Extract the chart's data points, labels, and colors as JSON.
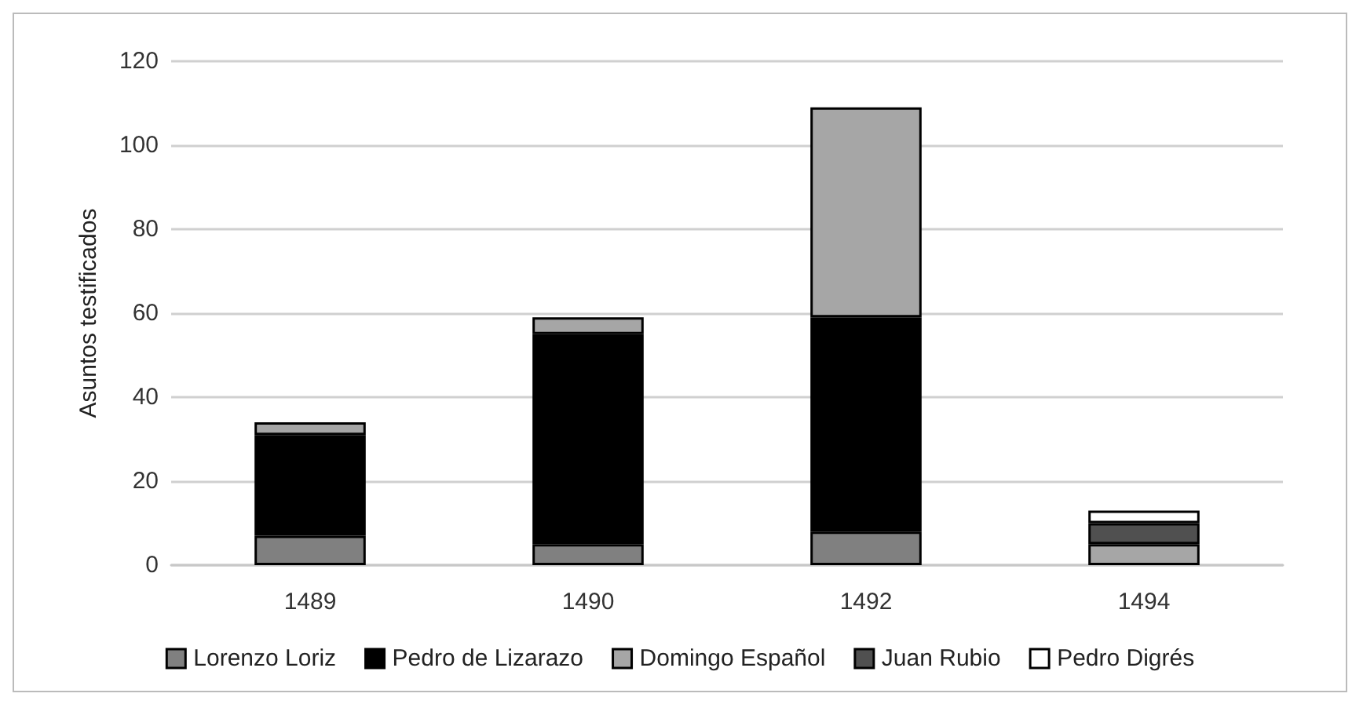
{
  "chart_data": {
    "type": "bar",
    "stacked": true,
    "ylabel": "Asuntos testificados",
    "categories": [
      "1489",
      "1490",
      "1492",
      "1494"
    ],
    "series": [
      {
        "name": "Lorenzo Loriz",
        "color": "#808080",
        "values": [
          7,
          5,
          8,
          null
        ]
      },
      {
        "name": "Pedro de Lizarazo",
        "color": "#000000",
        "values": [
          24,
          50,
          51,
          null
        ]
      },
      {
        "name": "Domingo Español",
        "color": "#a6a6a6",
        "values": [
          3,
          4,
          50,
          5
        ]
      },
      {
        "name": "Juan Rubio",
        "color": "#505050",
        "values": [
          null,
          null,
          null,
          5
        ]
      },
      {
        "name": "Pedro Digrés",
        "color": "#ffffff",
        "values": [
          null,
          null,
          null,
          3
        ]
      }
    ],
    "ylim": [
      0,
      120
    ],
    "yticks": [
      0,
      20,
      40,
      60,
      80,
      100,
      120
    ],
    "grid": "y",
    "legend": "bottom"
  }
}
